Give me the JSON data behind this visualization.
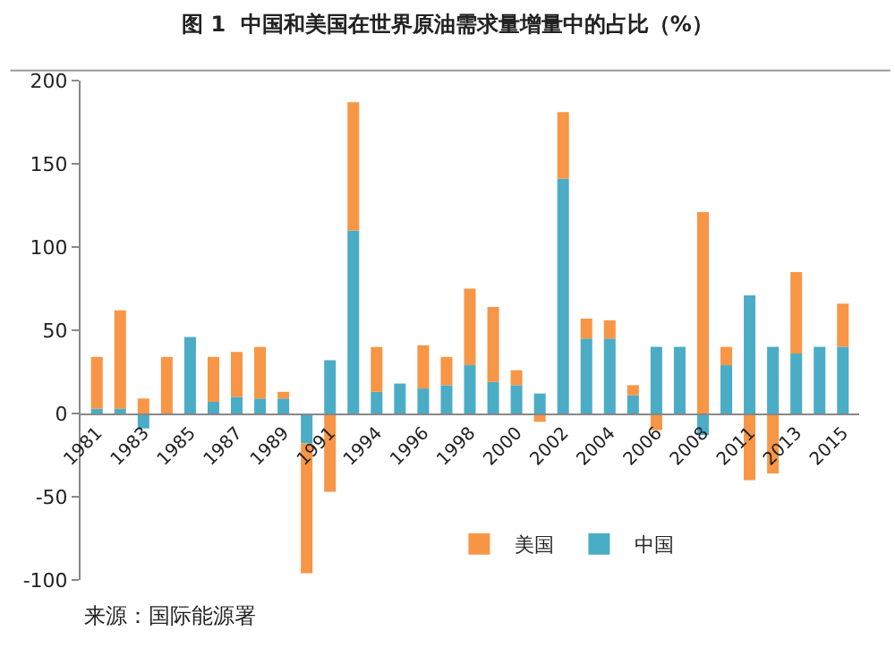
{
  "chart_data": {
    "type": "bar",
    "stacked": true,
    "title": "图 1  中国和美国在世界原油需求量增量中的占比（%）",
    "categories": [
      "1981",
      null,
      "1983",
      null,
      "1985",
      null,
      "1987",
      null,
      "1989",
      null,
      "1991",
      null,
      "1994",
      null,
      "1996",
      null,
      "1998",
      null,
      "2000",
      null,
      "2002",
      null,
      "2004",
      null,
      "2006",
      null,
      "2008",
      null,
      "2011",
      null,
      "2013",
      null,
      "2015"
    ],
    "series": [
      {
        "name": "中国",
        "color": "#4bacc6",
        "values": [
          3,
          3,
          -9,
          0,
          46,
          7,
          10,
          9,
          9,
          -18,
          32,
          110,
          13,
          18,
          15,
          17,
          29,
          19,
          17,
          12,
          141,
          45,
          45,
          11,
          40,
          40,
          -13,
          29,
          71,
          40,
          36,
          40,
          40
        ]
      },
      {
        "name": "美国",
        "color": "#f79646",
        "values": [
          31,
          59,
          9,
          34,
          0,
          27,
          27,
          31,
          4,
          -78,
          -47,
          77,
          27,
          0,
          26,
          17,
          46,
          45,
          9,
          -5,
          40,
          12,
          11,
          6,
          -10,
          0,
          121,
          11,
          -40,
          -36,
          49,
          0,
          26
        ]
      }
    ],
    "ylim": [
      -100,
      200
    ],
    "yticks": [
      -100,
      -50,
      0,
      50,
      100,
      150,
      200
    ],
    "legend": "bottom",
    "annotations": [
      "来源：国际能源署"
    ]
  }
}
